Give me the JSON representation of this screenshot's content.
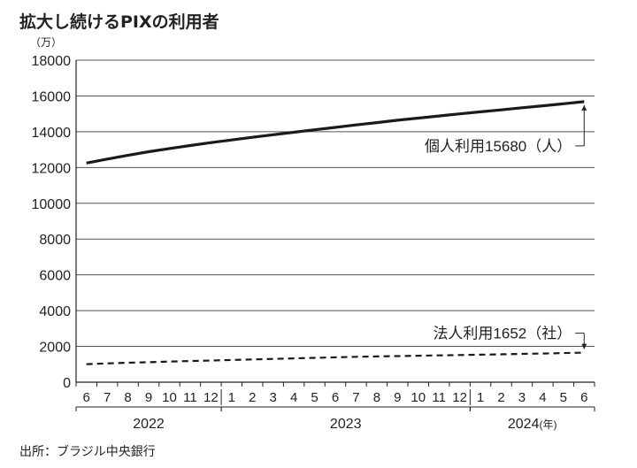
{
  "title": "拡大し続けるPIXの利用者",
  "source": "出所：ブラジル中央銀行",
  "chart_data": {
    "type": "line",
    "title": "拡大し続けるPIXの利用者",
    "ylabel": "（万）",
    "ylim": [
      0,
      18000
    ],
    "yticks": [
      0,
      2000,
      4000,
      6000,
      8000,
      10000,
      12000,
      14000,
      16000,
      18000
    ],
    "grid": true,
    "x": [
      "6",
      "7",
      "8",
      "9",
      "10",
      "11",
      "12",
      "1",
      "2",
      "3",
      "4",
      "5",
      "6",
      "7",
      "8",
      "9",
      "10",
      "11",
      "12",
      "1",
      "2",
      "3",
      "4",
      "5",
      "6"
    ],
    "years": [
      {
        "label": "2022",
        "start": 0,
        "end": 6
      },
      {
        "label": "2023",
        "start": 7,
        "end": 18
      },
      {
        "label": "2024",
        "start": 19,
        "end": 24,
        "suffix": "(年)"
      }
    ],
    "series": [
      {
        "name": "個人利用",
        "style": "solid",
        "values": [
          12250,
          12470,
          12680,
          12880,
          13060,
          13230,
          13390,
          13540,
          13690,
          13830,
          13970,
          14110,
          14240,
          14380,
          14510,
          14640,
          14760,
          14880,
          15000,
          15110,
          15220,
          15340,
          15450,
          15560,
          15680
        ]
      },
      {
        "name": "法人利用",
        "style": "dashed",
        "values": [
          1010,
          1050,
          1090,
          1120,
          1150,
          1180,
          1210,
          1240,
          1270,
          1300,
          1330,
          1360,
          1390,
          1420,
          1440,
          1460,
          1480,
          1500,
          1520,
          1540,
          1560,
          1580,
          1600,
          1625,
          1652
        ]
      }
    ],
    "annotations": [
      {
        "series": 0,
        "text": "個人利用15680（人）"
      },
      {
        "series": 1,
        "text": "法人利用1652（社）"
      }
    ],
    "colors": {
      "line": "#1a1a1a",
      "grid": "#555555",
      "axis": "#222222"
    }
  }
}
